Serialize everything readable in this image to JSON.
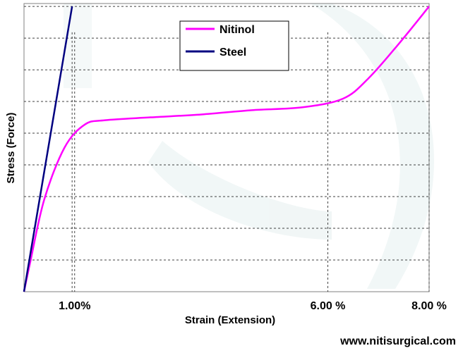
{
  "chart_data": {
    "type": "line",
    "xlabel": "Strain (Extension)",
    "ylabel": "Stress (Force)",
    "xlim": [
      0,
      8
    ],
    "ylim": [
      0,
      10
    ],
    "grid": true,
    "legend_placement": "top-center",
    "x_ticks": [
      {
        "value": 1,
        "label": "1.00%"
      },
      {
        "value": 6,
        "label": "6.00 %"
      },
      {
        "value": 8,
        "label": "8.00 %"
      }
    ],
    "series": [
      {
        "name": "Nitinol",
        "color": "#ff00ff",
        "x": [
          0,
          0.12,
          0.4,
          0.8,
          1.2,
          1.6,
          2.5,
          3.5,
          4.5,
          5.5,
          6.3,
          6.8,
          7.4,
          8.0
        ],
        "y": [
          0,
          1.0,
          3.2,
          5.0,
          5.8,
          5.95,
          6.05,
          6.15,
          6.3,
          6.4,
          6.7,
          7.4,
          8.6,
          9.9
        ]
      },
      {
        "name": "Steel",
        "color": "#000080",
        "x": [
          0,
          0.95
        ],
        "y": [
          0,
          9.9
        ]
      }
    ]
  },
  "watermark": "www.nitisurgical.com"
}
